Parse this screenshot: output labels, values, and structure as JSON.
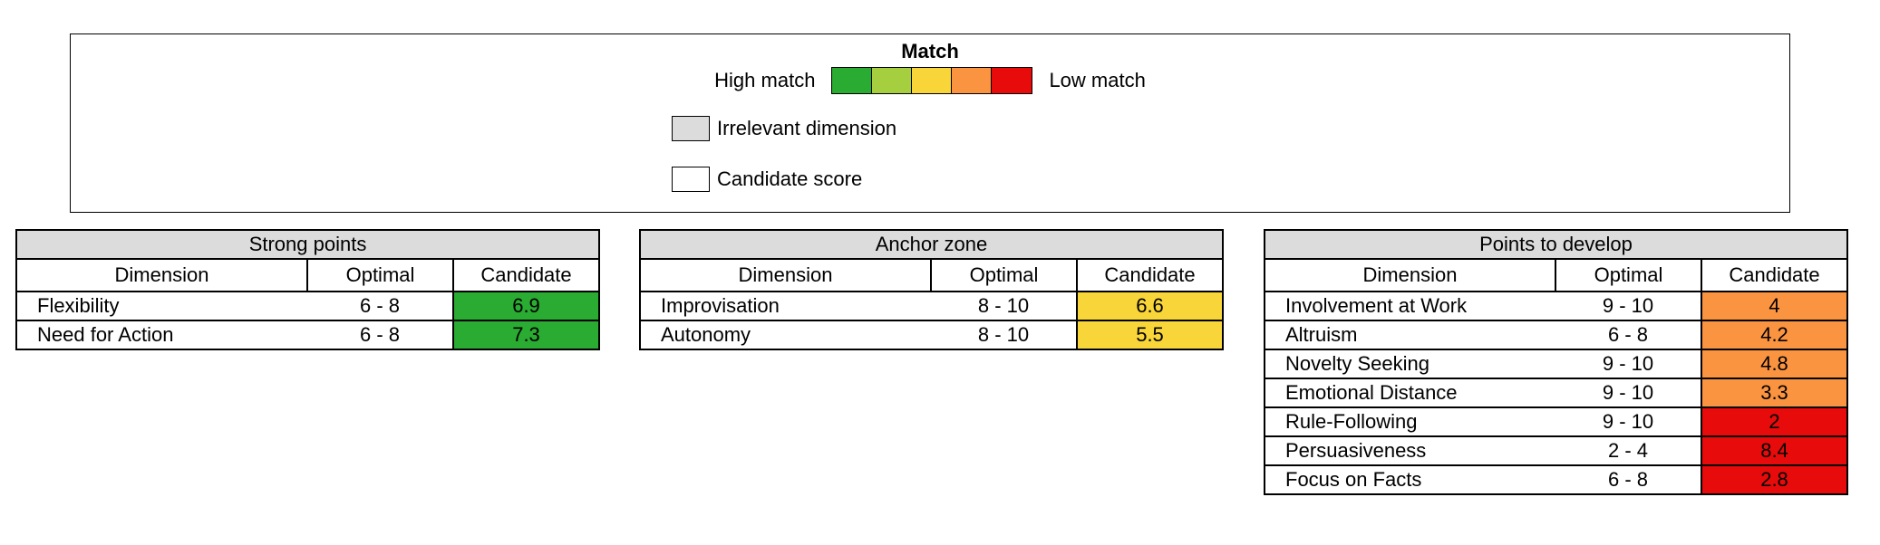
{
  "legend": {
    "title": "Match",
    "high_label": "High match",
    "low_label": "Low match",
    "scale_colors": [
      "#2aab31",
      "#a6cf3f",
      "#f8d63a",
      "#fb9440",
      "#e70b0b"
    ],
    "irrelevant_label": "Irrelevant dimension",
    "irrelevant_color": "#dcdcdc",
    "candidate_label": "Candidate score",
    "candidate_color": "#ffffff"
  },
  "zones": [
    {
      "title": "Strong points",
      "headers": [
        "Dimension",
        "Optimal",
        "Candidate"
      ],
      "rows": [
        {
          "dimension": "Flexibility",
          "optimal": "6 - 8",
          "candidate": "6.9",
          "color": "#2aab31"
        },
        {
          "dimension": "Need for Action",
          "optimal": "6 - 8",
          "candidate": "7.3",
          "color": "#2aab31"
        }
      ]
    },
    {
      "title": "Anchor zone",
      "headers": [
        "Dimension",
        "Optimal",
        "Candidate"
      ],
      "rows": [
        {
          "dimension": "Improvisation",
          "optimal": "8 - 10",
          "candidate": "6.6",
          "color": "#f8d63a"
        },
        {
          "dimension": "Autonomy",
          "optimal": "8 - 10",
          "candidate": "5.5",
          "color": "#f8d63a"
        }
      ]
    },
    {
      "title": "Points to develop",
      "headers": [
        "Dimension",
        "Optimal",
        "Candidate"
      ],
      "rows": [
        {
          "dimension": "Involvement at Work",
          "optimal": "9 - 10",
          "candidate": "4",
          "color": "#fb9440"
        },
        {
          "dimension": "Altruism",
          "optimal": "6 - 8",
          "candidate": "4.2",
          "color": "#fb9440"
        },
        {
          "dimension": "Novelty Seeking",
          "optimal": "9 - 10",
          "candidate": "4.8",
          "color": "#fb9440"
        },
        {
          "dimension": "Emotional Distance",
          "optimal": "9 - 10",
          "candidate": "3.3",
          "color": "#fb9440"
        },
        {
          "dimension": "Rule-Following",
          "optimal": "9 - 10",
          "candidate": "2",
          "color": "#e70b0b"
        },
        {
          "dimension": "Persuasiveness",
          "optimal": "2 - 4",
          "candidate": "8.4",
          "color": "#e70b0b"
        },
        {
          "dimension": "Focus on Facts",
          "optimal": "6 - 8",
          "candidate": "2.8",
          "color": "#e70b0b"
        }
      ]
    }
  ]
}
